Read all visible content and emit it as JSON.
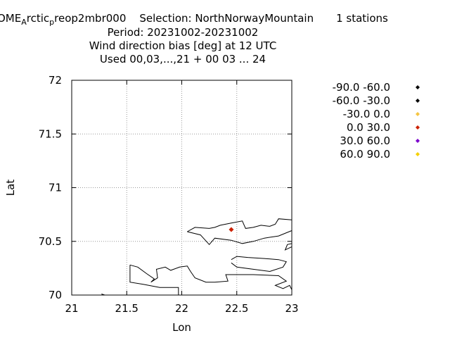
{
  "title": {
    "prefix": "OME",
    "sub1": "A",
    "mid": "rctic",
    "sub2": "p",
    "suffix": "reop2mbr000",
    "selection": "Selection: NorthNorwayMountain",
    "stations": "1 stations",
    "period": "Period: 20231002-20231002",
    "line3": "Wind direction bias [deg] at  12 UTC",
    "line4": "Used  00,03,...,21  + 00 03 ... 24"
  },
  "chart_data": {
    "type": "scatter",
    "xlabel": "Lon",
    "ylabel": "Lat",
    "xlim": [
      21,
      23
    ],
    "ylim": [
      70,
      72
    ],
    "xticks": [
      "21",
      "21.5",
      "22",
      "22.5",
      "23"
    ],
    "yticks": [
      "70",
      "70.5",
      "71",
      "71.5",
      "72"
    ],
    "grid": true,
    "legend_position": "right",
    "legend": [
      {
        "label": "-90.0 -60.0",
        "color": "#000000"
      },
      {
        "label": "-60.0 -30.0",
        "color": "#000000"
      },
      {
        "label": "-30.0 0.0",
        "color": "#f5c542"
      },
      {
        "label": "0.0 30.0",
        "color": "#cc2200"
      },
      {
        "label": "30.0 60.0",
        "color": "#7a00cc"
      },
      {
        "label": "60.0 90.0",
        "color": "#f5d000"
      }
    ],
    "points": [
      {
        "lon": 22.45,
        "lat": 70.61,
        "color": "#cc2200"
      }
    ],
    "coastlines": [
      [
        [
          21.27,
          70.01
        ],
        [
          21.3,
          70.0
        ]
      ],
      [
        [
          21.53,
          70.28
        ],
        [
          21.6,
          70.26
        ],
        [
          21.68,
          70.2
        ],
        [
          21.75,
          70.15
        ],
        [
          21.72,
          70.12
        ],
        [
          21.78,
          70.16
        ],
        [
          21.77,
          70.24
        ],
        [
          21.85,
          70.26
        ],
        [
          21.9,
          70.23
        ],
        [
          21.98,
          70.26
        ],
        [
          22.05,
          70.27
        ],
        [
          22.08,
          70.22
        ],
        [
          22.12,
          70.16
        ],
        [
          22.22,
          70.12
        ],
        [
          22.3,
          70.12
        ],
        [
          22.42,
          70.13
        ],
        [
          22.4,
          70.19
        ],
        [
          22.65,
          70.19
        ],
        [
          22.88,
          70.18
        ],
        [
          22.95,
          70.13
        ],
        [
          22.85,
          70.09
        ],
        [
          22.92,
          70.06
        ],
        [
          22.98,
          70.09
        ],
        [
          23.0,
          70.05
        ]
      ],
      [
        [
          21.53,
          70.28
        ],
        [
          21.53,
          70.12
        ],
        [
          21.65,
          70.1
        ],
        [
          21.8,
          70.07
        ],
        [
          21.97,
          70.07
        ],
        [
          21.97,
          70.0
        ]
      ],
      [
        [
          22.05,
          70.59
        ],
        [
          22.12,
          70.63
        ],
        [
          22.25,
          70.62
        ],
        [
          22.3,
          70.63
        ],
        [
          22.35,
          70.65
        ],
        [
          22.45,
          70.67
        ],
        [
          22.55,
          70.69
        ],
        [
          22.58,
          70.62
        ],
        [
          22.65,
          70.63
        ],
        [
          22.72,
          70.65
        ],
        [
          22.8,
          70.64
        ],
        [
          22.85,
          70.66
        ],
        [
          22.88,
          70.71
        ],
        [
          23.0,
          70.7
        ]
      ],
      [
        [
          22.05,
          70.59
        ],
        [
          22.17,
          70.56
        ],
        [
          22.25,
          70.47
        ],
        [
          22.3,
          70.53
        ],
        [
          22.45,
          70.51
        ],
        [
          22.55,
          70.48
        ],
        [
          22.65,
          70.5
        ],
        [
          22.75,
          70.53
        ],
        [
          22.88,
          70.55
        ],
        [
          22.95,
          70.58
        ],
        [
          23.0,
          70.6
        ]
      ],
      [
        [
          22.45,
          70.33
        ],
        [
          22.5,
          70.36
        ],
        [
          22.6,
          70.35
        ],
        [
          22.75,
          70.34
        ],
        [
          22.88,
          70.33
        ],
        [
          22.95,
          70.31
        ],
        [
          22.92,
          70.26
        ],
        [
          22.8,
          70.22
        ],
        [
          22.65,
          70.24
        ],
        [
          22.5,
          70.26
        ],
        [
          22.45,
          70.3
        ]
      ],
      [
        [
          23.0,
          70.48
        ],
        [
          22.96,
          70.47
        ],
        [
          22.94,
          70.42
        ],
        [
          23.0,
          70.45
        ]
      ]
    ]
  }
}
